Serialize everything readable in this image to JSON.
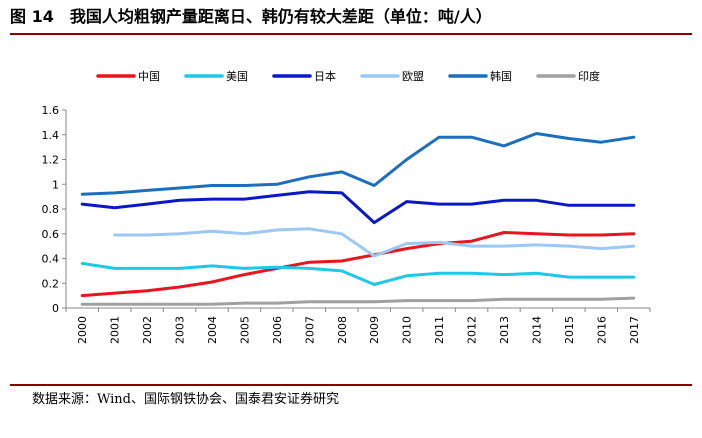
{
  "figure": {
    "label": "图 14",
    "title": "我国人均粗钢产量距离日、韩仍有较大差距（单位：吨/人）",
    "source": "数据来源：Wind、国际钢铁协会、国泰君安证券研究"
  },
  "chart_data": {
    "type": "line",
    "title": "我国人均粗钢产量距离日、韩仍有较大差距（单位：吨/人）",
    "xlabel": "",
    "ylabel": "",
    "ylim": [
      0,
      1.6
    ],
    "yticks": [
      "0",
      "0.2",
      "0.4",
      "0.6",
      "0.8",
      "1",
      "1.2",
      "1.4",
      "1.6"
    ],
    "x": [
      "2000",
      "2001",
      "2002",
      "2003",
      "2004",
      "2005",
      "2006",
      "2007",
      "2008",
      "2009",
      "2010",
      "2011",
      "2012",
      "2013",
      "2014",
      "2015",
      "2016",
      "2017"
    ],
    "grid": false,
    "legend_position": "top",
    "series": [
      {
        "name": "中国",
        "color": "#e8141e",
        "values": [
          0.1,
          0.12,
          0.14,
          0.17,
          0.21,
          0.27,
          0.32,
          0.37,
          0.38,
          0.43,
          0.48,
          0.52,
          0.54,
          0.61,
          0.6,
          0.59,
          0.59,
          0.6
        ]
      },
      {
        "name": "美国",
        "color": "#1ec8e8",
        "values": [
          0.36,
          0.32,
          0.32,
          0.32,
          0.34,
          0.32,
          0.33,
          0.32,
          0.3,
          0.19,
          0.26,
          0.28,
          0.28,
          0.27,
          0.28,
          0.25,
          0.25,
          0.25
        ]
      },
      {
        "name": "日本",
        "color": "#0a18c8",
        "values": [
          0.84,
          0.81,
          0.84,
          0.87,
          0.88,
          0.88,
          0.91,
          0.94,
          0.93,
          0.69,
          0.86,
          0.84,
          0.84,
          0.87,
          0.87,
          0.83,
          0.83,
          0.83
        ]
      },
      {
        "name": "欧盟",
        "color": "#9cc8f4",
        "values": [
          null,
          0.59,
          0.59,
          0.6,
          0.62,
          0.6,
          0.63,
          0.64,
          0.6,
          0.42,
          0.52,
          0.53,
          0.5,
          0.5,
          0.51,
          0.5,
          0.48,
          0.5
        ]
      },
      {
        "name": "韩国",
        "color": "#1e6ec0",
        "values": [
          0.92,
          0.93,
          0.95,
          0.97,
          0.99,
          0.99,
          1.0,
          1.06,
          1.1,
          0.99,
          1.2,
          1.38,
          1.38,
          1.31,
          1.41,
          1.37,
          1.34,
          1.38
        ]
      },
      {
        "name": "印度",
        "color": "#a0a0a0",
        "values": [
          0.03,
          0.03,
          0.03,
          0.03,
          0.03,
          0.04,
          0.04,
          0.05,
          0.05,
          0.05,
          0.06,
          0.06,
          0.06,
          0.07,
          0.07,
          0.07,
          0.07,
          0.08
        ]
      }
    ]
  }
}
